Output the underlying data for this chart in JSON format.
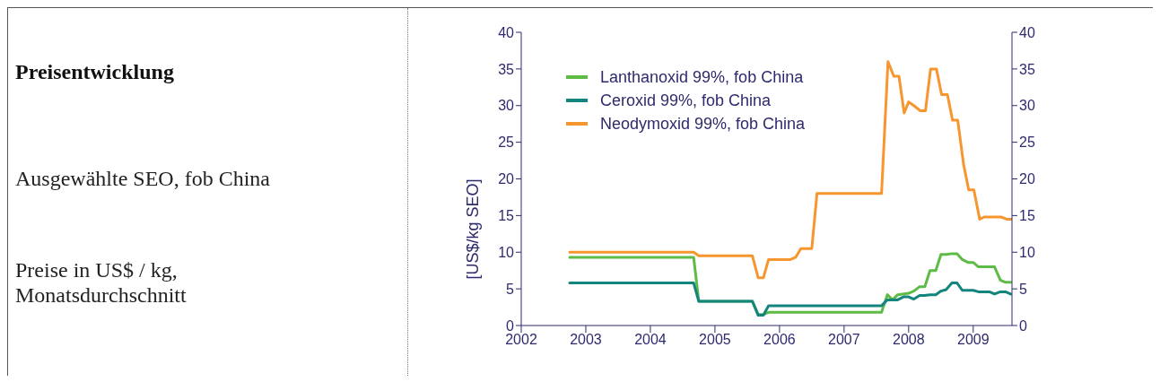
{
  "chart_data": {
    "type": "line",
    "title": "Preisentwicklung",
    "subtitle": "Ausgewählte SEO, fob China",
    "annotations": [
      "Preise in US$ / kg, Monatsdurchschnitt"
    ],
    "ylabel": "[US$/kg SEO]",
    "xlim": [
      2002,
      2009.6
    ],
    "xticks": [
      2002,
      2003,
      2004,
      2005,
      2006,
      2007,
      2008,
      2009
    ],
    "ylim": [
      0,
      40
    ],
    "yticks": [
      0,
      5,
      10,
      15,
      20,
      25,
      30,
      35,
      40
    ],
    "y2lim": [
      0,
      40
    ],
    "y2ticks": [
      0,
      5,
      10,
      15,
      20,
      25,
      30,
      35,
      40
    ],
    "grid": false,
    "legend": "top left",
    "marker": "none",
    "line_style": "solid",
    "series": [
      {
        "name": "Lanthanoxid 99%, fob China",
        "color": "#5dbb46",
        "x": [
          2002.75,
          2004.67,
          2004.75,
          2005.58,
          2005.67,
          2005.75,
          2005.83,
          2007.58,
          2007.67,
          2007.75,
          2007.83,
          2008.0,
          2008.08,
          2008.17,
          2008.25,
          2008.33,
          2008.42,
          2008.5,
          2008.58,
          2008.67,
          2008.75,
          2008.83,
          2008.92,
          2009.0,
          2009.08,
          2009.33,
          2009.42,
          2009.5,
          2009.58
        ],
        "values": [
          9.3,
          9.3,
          3.3,
          3.3,
          1.5,
          1.5,
          1.8,
          1.8,
          4.2,
          3.5,
          4.2,
          4.4,
          4.7,
          5.3,
          5.3,
          7.5,
          7.5,
          9.7,
          9.7,
          9.8,
          9.8,
          9.0,
          8.6,
          8.6,
          8.0,
          8.0,
          6.2,
          5.9,
          5.9
        ]
      },
      {
        "name": "Ceroxid 99%, fob China",
        "color": "#13857e",
        "x": [
          2002.75,
          2004.67,
          2004.75,
          2005.58,
          2005.67,
          2005.75,
          2005.83,
          2007.58,
          2007.67,
          2007.83,
          2007.92,
          2008.0,
          2008.08,
          2008.17,
          2008.25,
          2008.33,
          2008.42,
          2008.5,
          2008.58,
          2008.67,
          2008.75,
          2008.83,
          2009.0,
          2009.08,
          2009.25,
          2009.33,
          2009.42,
          2009.5,
          2009.58
        ],
        "values": [
          5.8,
          5.8,
          3.3,
          3.3,
          1.4,
          1.4,
          2.7,
          2.7,
          3.5,
          3.5,
          3.9,
          3.9,
          3.6,
          4.1,
          4.1,
          4.2,
          4.2,
          4.7,
          4.9,
          5.8,
          5.8,
          4.8,
          4.8,
          4.6,
          4.6,
          4.3,
          4.6,
          4.6,
          4.3
        ]
      },
      {
        "name": "Neodymoxid 99%, fob China",
        "color": "#f7962e",
        "x": [
          2002.75,
          2004.67,
          2004.75,
          2005.58,
          2005.67,
          2005.75,
          2005.83,
          2006.17,
          2006.25,
          2006.33,
          2006.5,
          2006.58,
          2007.58,
          2007.68,
          2007.77,
          2007.85,
          2007.93,
          2008.0,
          2008.08,
          2008.18,
          2008.26,
          2008.34,
          2008.43,
          2008.51,
          2008.6,
          2008.68,
          2008.76,
          2008.85,
          2008.93,
          2009.01,
          2009.1,
          2009.17,
          2009.43,
          2009.52,
          2009.59
        ],
        "values": [
          10,
          10,
          9.5,
          9.5,
          6.5,
          6.5,
          9,
          9,
          9.3,
          10.5,
          10.5,
          18,
          18,
          36,
          34,
          34,
          29,
          30.5,
          30,
          29.3,
          29.3,
          35,
          35,
          31.5,
          31.5,
          28,
          28,
          22,
          18.5,
          18.5,
          14.5,
          14.8,
          14.8,
          14.5,
          14.5
        ]
      }
    ]
  }
}
